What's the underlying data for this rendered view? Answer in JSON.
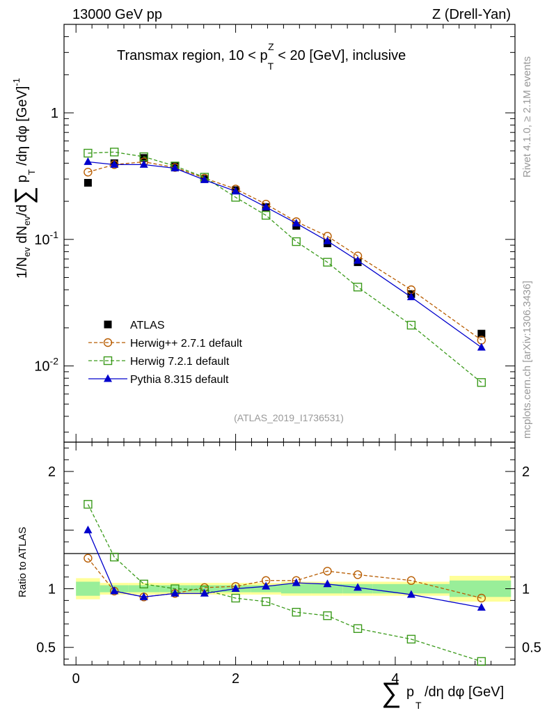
{
  "header": {
    "energy": "13000 GeV pp",
    "process": "Z (Drell-Yan)"
  },
  "side": {
    "rivet": "Rivet 4.1.0, ≥ 2.1M events",
    "mcplots": "mcplots.cern.ch [arXiv:1306.3436]"
  },
  "chart_data": {
    "type": "line",
    "title": "Transmax region, 10 < p_T^Z < 20 [GeV], inclusive",
    "analysis_tag": "(ATLAS_2019_I1736531)",
    "xlabel": "∑ p_T/dη dφ [GeV]",
    "ylabel": "1/N_ev dN_ev/d∑ p_T/dη dφ [GeV]^-1",
    "ratio_ylabel": "Ratio to ATLAS",
    "xlim": [
      -0.15,
      5.5
    ],
    "ylim": [
      0.0025,
      5
    ],
    "yscale": "log",
    "ratio_ylim": [
      0.35,
      2.25
    ],
    "x": [
      0.15,
      0.48,
      0.85,
      1.24,
      1.61,
      2.0,
      2.38,
      2.76,
      3.15,
      3.53,
      4.2,
      5.08
    ],
    "x_ticks": [
      0,
      2,
      4
    ],
    "x_tick_labels": [
      "0",
      "2",
      "4"
    ],
    "y_ticks": [
      0.01,
      0.1,
      1
    ],
    "y_tick_labels": [
      "10^-2",
      "10^-1",
      "1"
    ],
    "ratio_ticks": [
      0.5,
      1,
      2
    ],
    "ratio_tick_labels": [
      "0.5",
      "1",
      "2"
    ],
    "series": [
      {
        "name": "ATLAS",
        "marker": "square-filled",
        "color": "#000000",
        "values": [
          0.28,
          0.4,
          0.44,
          0.38,
          0.3,
          0.245,
          0.18,
          0.128,
          0.093,
          0.066,
          0.037,
          0.018
        ]
      },
      {
        "name": "Herwig++ 2.7.1 default",
        "marker": "circle-open",
        "color": "#b85c00",
        "dash": true,
        "values": [
          0.34,
          0.39,
          0.41,
          0.37,
          0.305,
          0.25,
          0.19,
          0.138,
          0.106,
          0.074,
          0.04,
          0.016
        ],
        "ratio": [
          1.26,
          0.98,
          0.93,
          0.96,
          1.01,
          1.02,
          1.07,
          1.07,
          1.15,
          1.12,
          1.07,
          0.92
        ]
      },
      {
        "name": "Herwig 7.2.1 default",
        "marker": "square-open",
        "color": "#3a9a1a",
        "dash": true,
        "values": [
          0.48,
          0.49,
          0.45,
          0.38,
          0.31,
          0.215,
          0.155,
          0.096,
          0.066,
          0.042,
          0.021,
          0.0074
        ],
        "ratio": [
          1.72,
          1.27,
          1.04,
          1.0,
          0.99,
          0.92,
          0.89,
          0.8,
          0.77,
          0.66,
          0.57,
          0.38
        ]
      },
      {
        "name": "Pythia 8.315 default",
        "marker": "triangle-filled",
        "color": "#0000cc",
        "dash": false,
        "values": [
          0.41,
          0.39,
          0.39,
          0.365,
          0.295,
          0.24,
          0.18,
          0.134,
          0.097,
          0.068,
          0.035,
          0.014
        ],
        "ratio": [
          1.5,
          0.98,
          0.93,
          0.96,
          0.96,
          1.0,
          1.02,
          1.05,
          1.04,
          1.01,
          0.95,
          0.84
        ]
      }
    ],
    "ratio_bands": {
      "x_edges": [
        0.0,
        0.3,
        0.66,
        1.05,
        1.43,
        1.8,
        2.19,
        2.57,
        2.95,
        3.34,
        3.72,
        4.68,
        5.45
      ],
      "yellow": [
        0.09,
        0.05,
        0.05,
        0.05,
        0.05,
        0.05,
        0.05,
        0.06,
        0.06,
        0.06,
        0.06,
        0.11
      ],
      "green": [
        0.06,
        0.03,
        0.03,
        0.03,
        0.03,
        0.03,
        0.03,
        0.04,
        0.04,
        0.04,
        0.04,
        0.07
      ]
    },
    "legend_placement": "bottom-left"
  }
}
